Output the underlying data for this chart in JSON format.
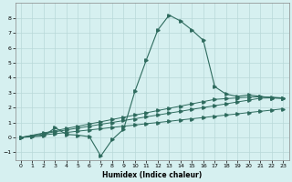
{
  "xlabel": "Humidex (Indice chaleur)",
  "bg_color": "#d6f0f0",
  "grid_color": "#b8d8d8",
  "line_color": "#2e6b5e",
  "xlim": [
    -0.5,
    23.5
  ],
  "ylim": [
    -1.5,
    9.0
  ],
  "xticks": [
    0,
    1,
    2,
    3,
    4,
    5,
    6,
    7,
    8,
    9,
    10,
    11,
    12,
    13,
    14,
    15,
    16,
    17,
    18,
    19,
    20,
    21,
    22,
    23
  ],
  "yticks": [
    -1,
    0,
    1,
    2,
    3,
    4,
    5,
    6,
    7,
    8
  ],
  "line1_x": [
    0,
    1,
    2,
    3,
    4,
    5,
    6,
    7,
    8,
    9,
    10,
    11,
    12,
    13,
    14,
    15,
    16,
    17,
    18,
    19,
    20,
    21,
    22,
    23
  ],
  "line1_y": [
    0.0,
    0.08,
    0.17,
    0.25,
    0.33,
    0.42,
    0.5,
    0.58,
    0.67,
    0.75,
    0.83,
    0.92,
    1.0,
    1.08,
    1.17,
    1.25,
    1.33,
    1.42,
    1.5,
    1.58,
    1.67,
    1.75,
    1.83,
    1.92
  ],
  "line2_x": [
    0,
    2,
    3,
    4,
    5,
    6,
    7,
    8,
    9,
    10,
    11,
    12,
    13,
    14,
    15,
    16,
    17,
    18,
    19,
    20,
    21,
    22,
    23
  ],
  "line2_y": [
    0.0,
    0.25,
    0.38,
    0.5,
    0.63,
    0.75,
    0.88,
    1.0,
    1.13,
    1.25,
    1.38,
    1.5,
    1.63,
    1.75,
    1.88,
    2.0,
    2.13,
    2.25,
    2.38,
    2.5,
    2.63,
    2.65,
    2.6
  ],
  "line3_x": [
    0,
    2,
    3,
    4,
    5,
    6,
    7,
    8,
    9,
    10,
    11,
    12,
    13,
    14,
    15,
    16,
    17,
    18,
    19,
    20,
    21,
    22,
    23
  ],
  "line3_y": [
    0.0,
    0.3,
    0.45,
    0.6,
    0.75,
    0.9,
    1.05,
    1.2,
    1.35,
    1.5,
    1.65,
    1.8,
    1.95,
    2.1,
    2.25,
    2.4,
    2.55,
    2.6,
    2.65,
    2.7,
    2.72,
    2.7,
    2.65
  ],
  "line4_x": [
    0,
    1,
    2,
    3,
    4,
    5,
    6,
    7,
    8,
    9,
    10,
    11,
    12,
    13,
    14,
    15,
    16,
    17,
    18,
    19,
    20,
    21,
    22,
    23
  ],
  "line4_y": [
    0.0,
    0.05,
    0.1,
    0.65,
    0.2,
    0.15,
    0.05,
    -1.25,
    -0.15,
    0.55,
    3.1,
    5.2,
    7.2,
    8.2,
    7.8,
    7.2,
    6.5,
    3.4,
    2.9,
    2.75,
    2.85,
    2.75,
    2.65,
    2.65
  ]
}
